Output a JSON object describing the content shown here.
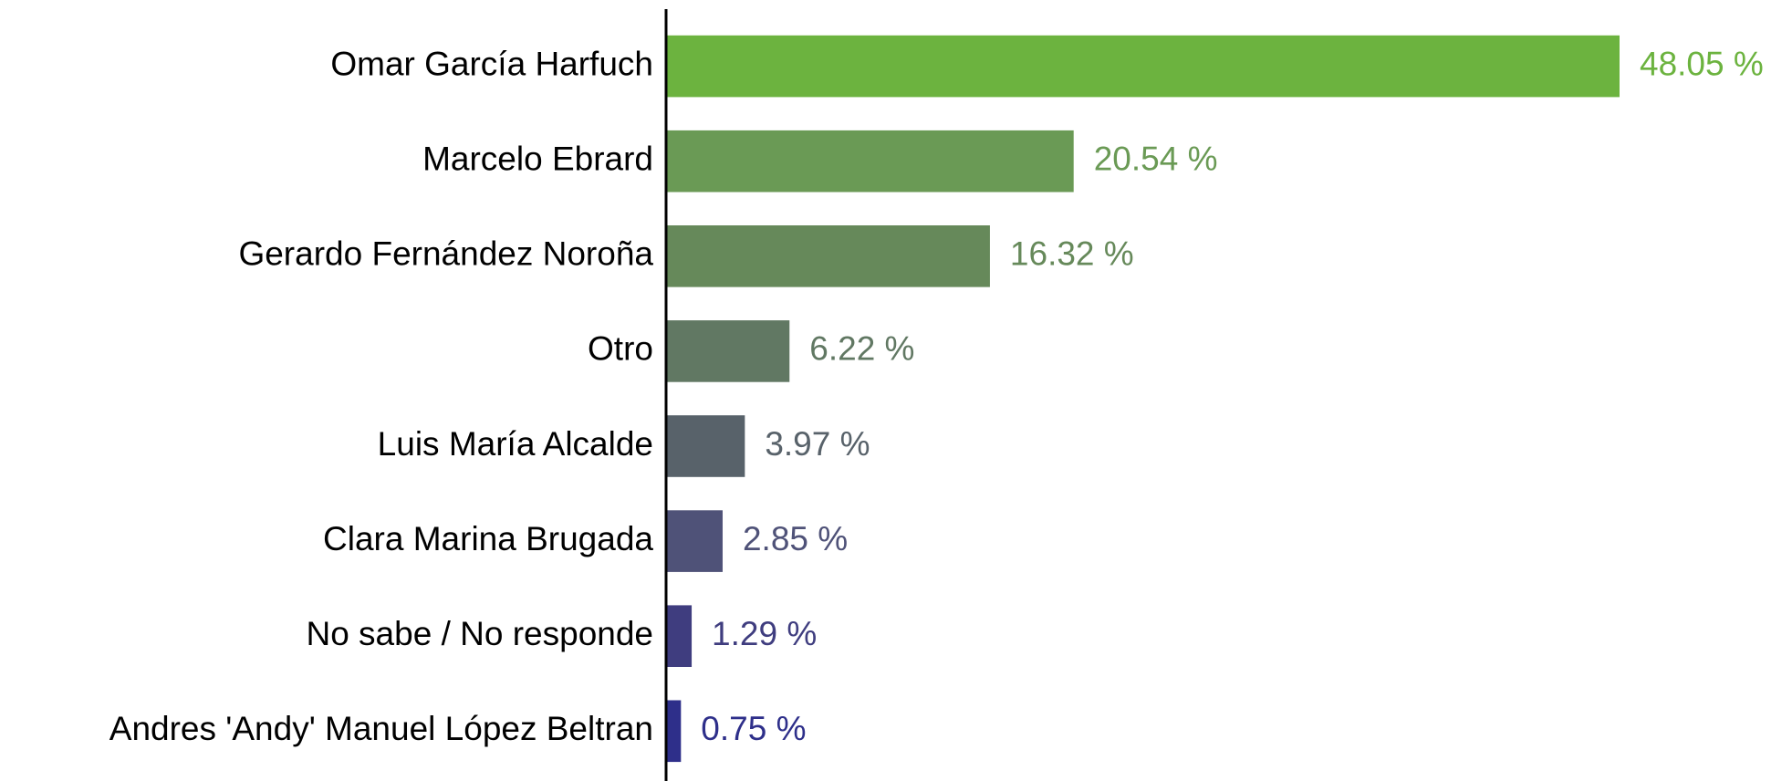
{
  "chart_data": {
    "type": "barh",
    "categories": [
      "Omar García Harfuch",
      "Marcelo Ebrard",
      "Gerardo Fernández Noroña",
      "Otro",
      "Luis María Alcalde",
      "Clara Marina Brugada",
      "No sabe / No responde",
      "Andres 'Andy' Manuel López Beltran"
    ],
    "values": [
      48.05,
      20.54,
      16.32,
      6.22,
      3.97,
      2.85,
      1.29,
      0.75
    ],
    "value_labels": [
      "48.05 %",
      "20.54 %",
      "16.32 %",
      "6.22 %",
      "3.97 %",
      "2.85 %",
      "1.29 %",
      "0.75 %"
    ],
    "colors": [
      "#6cb33f",
      "#6a9a55",
      "#66895a",
      "#617863",
      "#58626a",
      "#4f5278",
      "#3f3d7f",
      "#2e2f8a"
    ]
  }
}
